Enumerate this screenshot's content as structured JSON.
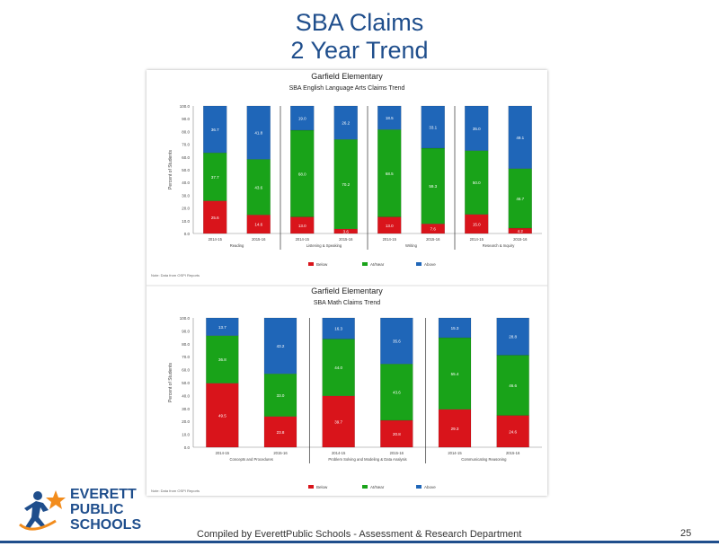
{
  "slide": {
    "title_line1": "SBA Claims",
    "title_line2": "2 Year Trend",
    "footer": "Compiled  by EverettPublic Schools - Assessment & Research Department",
    "page_number": "25"
  },
  "logo": {
    "word1": "EVERETT",
    "word2": "PUBLIC",
    "word3": "SCHOOLS"
  },
  "colors": {
    "below": "#d9141b",
    "at": "#19a319",
    "above": "#1f66b8"
  },
  "chart_data": [
    {
      "type": "bar",
      "stacked": true,
      "title": "Garfield Elementary",
      "subtitle": "SBA English Language Arts Claims Trend",
      "ylabel": "Percent of Students",
      "ylim": [
        0,
        100
      ],
      "yticks": [
        "0.0",
        "10.0",
        "20.0",
        "30.0",
        "40.0",
        "50.0",
        "60.0",
        "70.0",
        "80.0",
        "90.0",
        "100.0"
      ],
      "groups": [
        "Reading",
        "Listening & Speaking",
        "Writing",
        "Research & Inquiry"
      ],
      "categories": [
        "2014-15",
        "2015-16",
        "2014-15",
        "2015-16",
        "2014-15",
        "2015-16",
        "2014-15",
        "2015-16"
      ],
      "series": [
        {
          "name": "Below",
          "color": "#d9141b",
          "values": [
            25.6,
            14.6,
            13.0,
            3.6,
            13.0,
            7.6,
            15.0,
            4.2
          ]
        },
        {
          "name": "At/Near",
          "color": "#19a319",
          "values": [
            37.7,
            43.6,
            68.0,
            70.2,
            68.5,
            59.3,
            50.0,
            46.7
          ]
        },
        {
          "name": "Above",
          "color": "#1f66b8",
          "values": [
            36.7,
            41.8,
            19.0,
            26.2,
            18.5,
            33.1,
            35.0,
            49.1
          ]
        }
      ],
      "data_labels": [
        [
          "25.6",
          "37.7",
          "36.7"
        ],
        [
          "14.6",
          "43.6",
          "41.8"
        ],
        [
          "13.0",
          "68.0",
          "19.0"
        ],
        [
          "3.6",
          "70.2",
          "26.2"
        ],
        [
          "13.0",
          "68.5",
          "18.5"
        ],
        [
          "7.6",
          "59.3",
          "33.1"
        ],
        [
          "15.0",
          "50.0",
          "35.0"
        ],
        [
          "4.2",
          "46.7",
          "49.1"
        ]
      ],
      "legend": [
        "Below",
        "At/Near",
        "Above"
      ],
      "legend_position": "bottom",
      "note": "Note: Data from OSPI Reports"
    },
    {
      "type": "bar",
      "stacked": true,
      "title": "Garfield Elementary",
      "subtitle": "SBA Math Claims Trend",
      "ylabel": "Percent of Students",
      "ylim": [
        0,
        100
      ],
      "yticks": [
        "0.0",
        "10.0",
        "20.0",
        "30.0",
        "40.0",
        "50.0",
        "60.0",
        "70.0",
        "80.0",
        "90.0",
        "100.0"
      ],
      "groups": [
        "Concepts and Procedures",
        "Problem Solving and Modeling & Data Analysis",
        "Communicating Reasoning"
      ],
      "categories": [
        "2014-15",
        "2015-16",
        "2014-15",
        "2015-16",
        "2014-15",
        "2015-16"
      ],
      "series": [
        {
          "name": "Below",
          "color": "#d9141b",
          "values": [
            49.5,
            23.8,
            39.7,
            20.8,
            29.3,
            24.6
          ]
        },
        {
          "name": "At/Near",
          "color": "#19a319",
          "values": [
            36.8,
            33.0,
            44.0,
            43.6,
            55.4,
            46.6
          ]
        },
        {
          "name": "Above",
          "color": "#1f66b8",
          "values": [
            13.7,
            43.2,
            16.3,
            35.6,
            15.3,
            28.8
          ]
        }
      ],
      "data_labels": [
        [
          "49.5",
          "36.8",
          "13.7"
        ],
        [
          "23.8",
          "33.0",
          "43.2"
        ],
        [
          "39.7",
          "44.0",
          "16.3"
        ],
        [
          "20.8",
          "43.6",
          "35.6"
        ],
        [
          "29.3",
          "55.4",
          "15.3"
        ],
        [
          "24.6",
          "46.6",
          "28.8"
        ]
      ],
      "legend": [
        "Below",
        "At/Near",
        "Above"
      ],
      "legend_position": "bottom",
      "note": "Note: Data from OSPI Reports"
    }
  ]
}
